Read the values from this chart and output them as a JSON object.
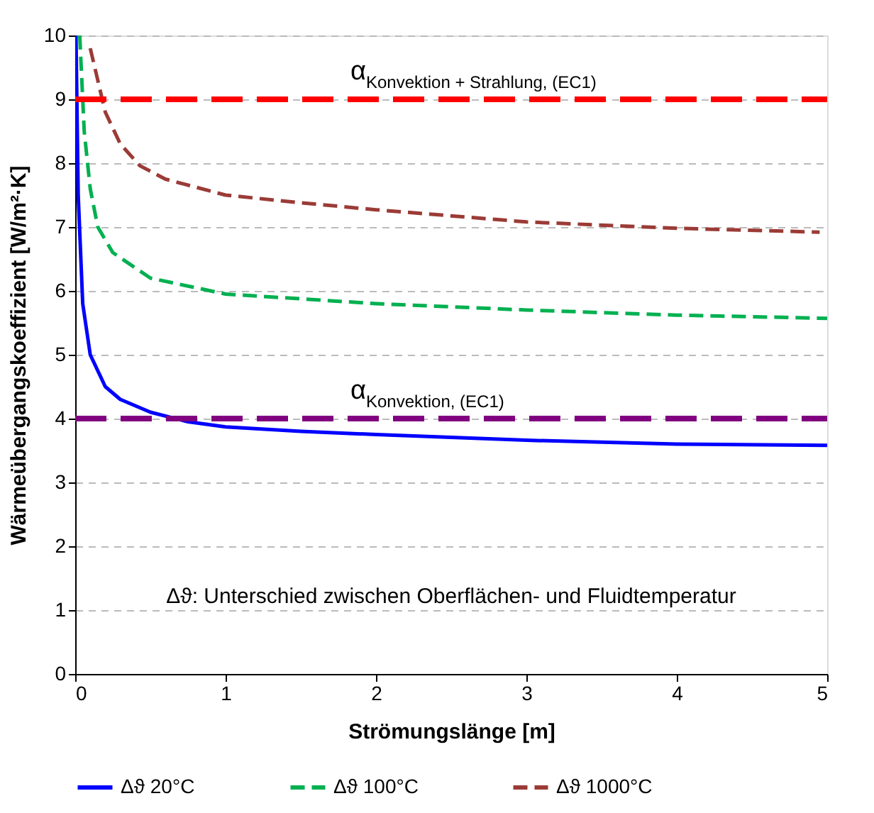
{
  "chart_data": {
    "type": "line",
    "xlabel": "Strömungslänge [m]",
    "ylabel": "Wärmeübergangskoeffizient [W/m²·K]",
    "xlim": [
      0,
      5
    ],
    "xticks": [
      0,
      1,
      2,
      3,
      4,
      5
    ],
    "ylim": [
      0,
      10
    ],
    "yticks": [
      0,
      1,
      2,
      3,
      4,
      5,
      6,
      7,
      8,
      9,
      10
    ],
    "grid": "y",
    "legend": "bottom",
    "marker": "none",
    "series": [
      {
        "name": "Δϑ 20°C",
        "color": "#0000ff",
        "line_style": "solid",
        "x": [
          0.005,
          0.02,
          0.05,
          0.1,
          0.2,
          0.3,
          0.5,
          0.75,
          1,
          1.5,
          2,
          3,
          4,
          5
        ],
        "values": [
          10,
          7.5,
          5.8,
          5.0,
          4.5,
          4.3,
          4.1,
          3.95,
          3.87,
          3.8,
          3.75,
          3.66,
          3.6,
          3.58
        ]
      },
      {
        "name": "Δϑ 100°C",
        "color": "#00b050",
        "line_style": "dashed",
        "x": [
          0.03,
          0.06,
          0.1,
          0.15,
          0.25,
          0.5,
          1,
          2,
          3,
          4,
          5
        ],
        "values": [
          10,
          8.5,
          7.6,
          7.0,
          6.6,
          6.2,
          5.95,
          5.8,
          5.7,
          5.62,
          5.57
        ]
      },
      {
        "name": "Δϑ 1000°C",
        "color": "#9b3b36",
        "line_style": "dashed",
        "x": [
          0.1,
          0.15,
          0.2,
          0.3,
          0.43,
          0.6,
          1,
          1.5,
          2,
          3,
          4,
          4.95
        ],
        "values": [
          9.8,
          9.3,
          8.8,
          8.3,
          7.96,
          7.75,
          7.5,
          7.38,
          7.27,
          7.08,
          6.98,
          6.92
        ]
      }
    ],
    "ref_lines": [
      {
        "axis": "y",
        "value": 9,
        "label": "α$_{Konvektion + Strahlung, (EC1)}$",
        "color": "#ff0000",
        "line_style": "dashed"
      },
      {
        "axis": "y",
        "value": 4,
        "label": "α$_{Konvektion, (EC1)}$",
        "color": "#800080",
        "line_style": "dashed"
      }
    ],
    "annotations": [
      "Δϑ: Unterschied zwischen Oberflächen- und Fluidtemperatur"
    ]
  }
}
